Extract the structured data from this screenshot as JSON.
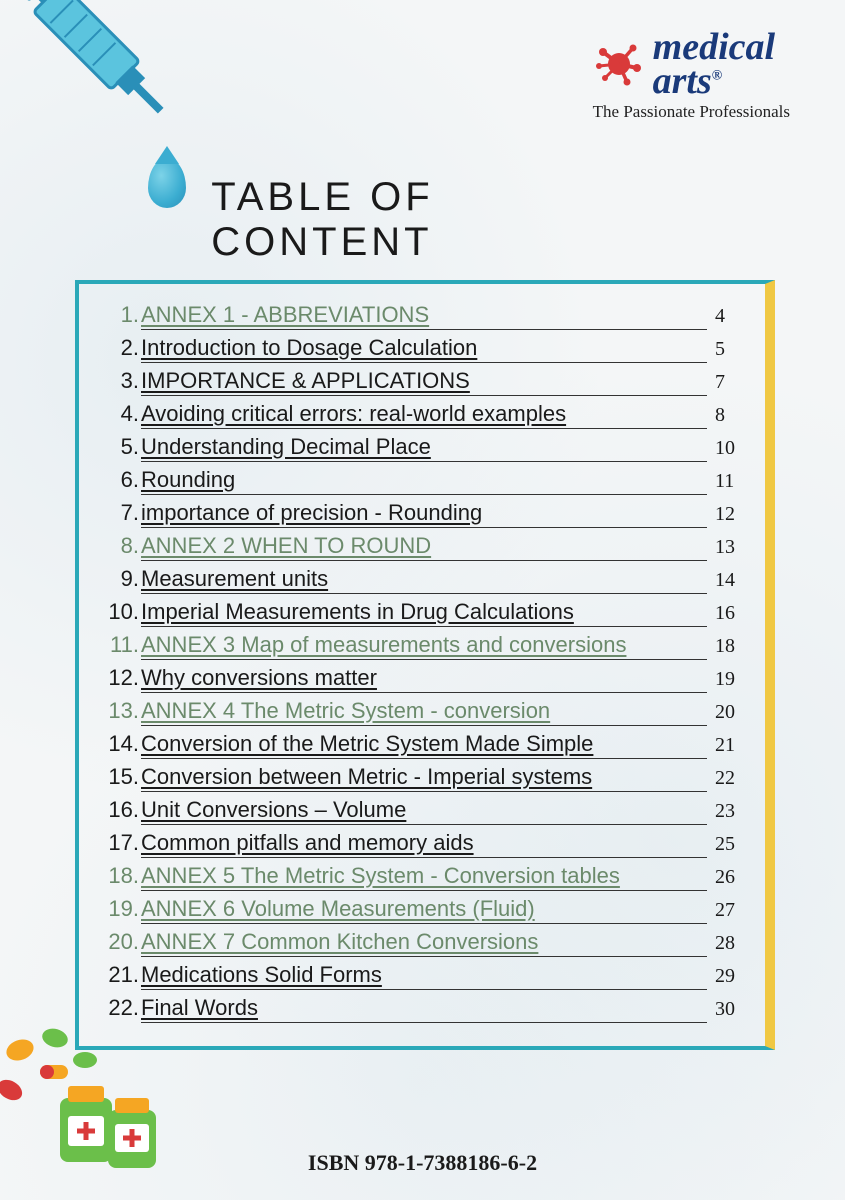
{
  "title": "TABLE OF CONTENT",
  "logo": {
    "line1": "medical",
    "line2": "arts",
    "tagline": "The Passionate Professionals",
    "splat_color": "#d93a3a",
    "text_color": "#1a3a7a"
  },
  "isbn": "ISBN 978-1-7388186-6-2",
  "colors": {
    "box_border": "#2aa8b8",
    "box_right": "#f0c843",
    "annex_text": "#6b8a6b",
    "syringe_fill": "#3badd1",
    "background": "#f4f6f7"
  },
  "toc": [
    {
      "n": "1.",
      "label": "ANNEX 1 - ABBREVIATIONS",
      "page": "4",
      "annex": true
    },
    {
      "n": "2.",
      "label": "Introduction to Dosage Calculation",
      "page": "5",
      "annex": false
    },
    {
      "n": "3.",
      "label": "IMPORTANCE & APPLICATIONS",
      "page": "7",
      "annex": false
    },
    {
      "n": "4.",
      "label": "Avoiding critical errors: real-world examples",
      "page": "8",
      "annex": false
    },
    {
      "n": "5.",
      "label": "Understanding Decimal Place",
      "page": "10",
      "annex": false
    },
    {
      "n": "6.",
      "label": "Rounding",
      "page": "11",
      "annex": false
    },
    {
      "n": "7.",
      "label": "importance of precision - Rounding",
      "page": "12",
      "annex": false
    },
    {
      "n": "8.",
      "label": "ANNEX 2 WHEN TO ROUND",
      "page": "13",
      "annex": true
    },
    {
      "n": "9.",
      "label": "Measurement units",
      "page": "14",
      "annex": false
    },
    {
      "n": "10.",
      "label": "Imperial Measurements in Drug Calculations",
      "page": "16",
      "annex": false
    },
    {
      "n": "11.",
      "label": "ANNEX 3 Map of measurements and conversions",
      "page": "18",
      "annex": true
    },
    {
      "n": "12.",
      "label": "Why conversions matter",
      "page": "19",
      "annex": false
    },
    {
      "n": "13.",
      "label": "ANNEX 4 The Metric System - conversion",
      "page": "20",
      "annex": true
    },
    {
      "n": "14.",
      "label": "Conversion of the Metric System Made Simple",
      "page": "21",
      "annex": false
    },
    {
      "n": "15.",
      "label": "Conversion between Metric - Imperial systems",
      "page": "22",
      "annex": false
    },
    {
      "n": "16.",
      "label": "Unit Conversions – Volume",
      "page": "23",
      "annex": false
    },
    {
      "n": "17.",
      "label": "Common pitfalls and memory aids",
      "page": "25",
      "annex": false
    },
    {
      "n": "18.",
      "label": "ANNEX 5 The Metric System - Conversion tables",
      "page": "26",
      "annex": true
    },
    {
      "n": "19.",
      "label": "ANNEX 6 Volume Measurements (Fluid)",
      "page": "27",
      "annex": true
    },
    {
      "n": "20.",
      "label": "ANNEX 7 Common Kitchen Conversions",
      "page": "28",
      "annex": true
    },
    {
      "n": "21.",
      "label": "Medications Solid Forms",
      "page": "29",
      "annex": false
    },
    {
      "n": "22.",
      "label": "Final Words",
      "page": "30",
      "annex": false
    }
  ]
}
